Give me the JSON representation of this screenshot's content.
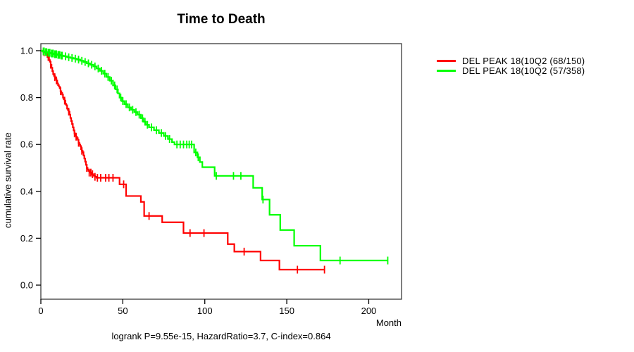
{
  "chart_data": {
    "type": "line",
    "subtype": "kaplan-meier-survival-steps",
    "title": "Time to Death",
    "xlabel": "Month",
    "ylabel": "cumulative survival rate",
    "annotation": "logrank P=9.55e-15, HazardRatio=3.7, C-index=0.864",
    "xlim": [
      0,
      220
    ],
    "ylim": [
      0,
      1
    ],
    "x_ticks": [
      0,
      50,
      100,
      150,
      200
    ],
    "y_ticks": [
      0,
      0.2,
      0.4,
      0.6,
      0.8,
      1.0
    ],
    "grid": false,
    "legend_position": "right-outside",
    "series": [
      {
        "name": "DEL PEAK 18(10Q2 (68/150)",
        "color": "#ff0000",
        "end_time": 173.4,
        "steps": [
          [
            0,
            1.0
          ],
          [
            1.5,
            0.993
          ],
          [
            3,
            0.987
          ],
          [
            4,
            0.973
          ],
          [
            5,
            0.96
          ],
          [
            5.5,
            0.953
          ],
          [
            6,
            0.94
          ],
          [
            6.5,
            0.927
          ],
          [
            7,
            0.913
          ],
          [
            7.5,
            0.9
          ],
          [
            8,
            0.893
          ],
          [
            8.5,
            0.887
          ],
          [
            9,
            0.88
          ],
          [
            9.5,
            0.873
          ],
          [
            10,
            0.86
          ],
          [
            10.5,
            0.853
          ],
          [
            11,
            0.847
          ],
          [
            11.5,
            0.84
          ],
          [
            12,
            0.827
          ],
          [
            12.5,
            0.82
          ],
          [
            13,
            0.813
          ],
          [
            13.5,
            0.8
          ],
          [
            14,
            0.793
          ],
          [
            14.5,
            0.787
          ],
          [
            15,
            0.773
          ],
          [
            15.5,
            0.767
          ],
          [
            16,
            0.753
          ],
          [
            16.5,
            0.747
          ],
          [
            17,
            0.74
          ],
          [
            17.5,
            0.727
          ],
          [
            18,
            0.713
          ],
          [
            18.5,
            0.7
          ],
          [
            19,
            0.687
          ],
          [
            19.5,
            0.673
          ],
          [
            20,
            0.66
          ],
          [
            20.5,
            0.647
          ],
          [
            21,
            0.64
          ],
          [
            21.5,
            0.633
          ],
          [
            22,
            0.627
          ],
          [
            22.5,
            0.62
          ],
          [
            23,
            0.607
          ],
          [
            23.5,
            0.6
          ],
          [
            24,
            0.593
          ],
          [
            24.5,
            0.58
          ],
          [
            25,
            0.573
          ],
          [
            25.5,
            0.567
          ],
          [
            26,
            0.553
          ],
          [
            26.5,
            0.54
          ],
          [
            27,
            0.527
          ],
          [
            27.5,
            0.513
          ],
          [
            28,
            0.5
          ],
          [
            28.5,
            0.493
          ],
          [
            29,
            0.487
          ],
          [
            30,
            0.48
          ],
          [
            31,
            0.473
          ],
          [
            32,
            0.467
          ],
          [
            33,
            0.462
          ],
          [
            34,
            0.458
          ],
          [
            48,
            0.43
          ],
          [
            52,
            0.38
          ],
          [
            61,
            0.355
          ],
          [
            63,
            0.295
          ],
          [
            74,
            0.268
          ],
          [
            87,
            0.222
          ],
          [
            114,
            0.175
          ],
          [
            118,
            0.143
          ],
          [
            134,
            0.105
          ],
          [
            145.5,
            0.066
          ]
        ],
        "censor_marks": [
          [
            2,
            0.993
          ],
          [
            4.5,
            0.973
          ],
          [
            6,
            0.94
          ],
          [
            8.5,
            0.887
          ],
          [
            9.5,
            0.873
          ],
          [
            12,
            0.827
          ],
          [
            14.5,
            0.787
          ],
          [
            17,
            0.74
          ],
          [
            20.5,
            0.647
          ],
          [
            21.5,
            0.633
          ],
          [
            23,
            0.607
          ],
          [
            25,
            0.573
          ],
          [
            28,
            0.5
          ],
          [
            29.5,
            0.48
          ],
          [
            30.5,
            0.48
          ],
          [
            31.5,
            0.473
          ],
          [
            33,
            0.462
          ],
          [
            34.5,
            0.458
          ],
          [
            36.5,
            0.458
          ],
          [
            39.5,
            0.458
          ],
          [
            41.5,
            0.458
          ],
          [
            44,
            0.458
          ],
          [
            50.5,
            0.43
          ],
          [
            66,
            0.295
          ],
          [
            91,
            0.222
          ],
          [
            99.5,
            0.222
          ],
          [
            124,
            0.143
          ],
          [
            156.5,
            0.066
          ],
          [
            173,
            0.066
          ]
        ]
      },
      {
        "name": "DEL PEAK 18(10Q2 (57/358)",
        "color": "#00ff00",
        "end_time": 211.6,
        "steps": [
          [
            0,
            1.0
          ],
          [
            1,
            0.997
          ],
          [
            2.5,
            0.994
          ],
          [
            4,
            0.991
          ],
          [
            6,
            0.988
          ],
          [
            8,
            0.985
          ],
          [
            10,
            0.982
          ],
          [
            12,
            0.979
          ],
          [
            14,
            0.976
          ],
          [
            16,
            0.972
          ],
          [
            18,
            0.969
          ],
          [
            20,
            0.966
          ],
          [
            22,
            0.962
          ],
          [
            24,
            0.957
          ],
          [
            26,
            0.952
          ],
          [
            28,
            0.946
          ],
          [
            30,
            0.94
          ],
          [
            32,
            0.933
          ],
          [
            34,
            0.924
          ],
          [
            36,
            0.914
          ],
          [
            38,
            0.902
          ],
          [
            40,
            0.888
          ],
          [
            42,
            0.872
          ],
          [
            44,
            0.852
          ],
          [
            45.5,
            0.835
          ],
          [
            47,
            0.818
          ],
          [
            48,
            0.8
          ],
          [
            49.5,
            0.785
          ],
          [
            51,
            0.772
          ],
          [
            53,
            0.758
          ],
          [
            55,
            0.748
          ],
          [
            57,
            0.738
          ],
          [
            59,
            0.727
          ],
          [
            61,
            0.712
          ],
          [
            62.5,
            0.697
          ],
          [
            64,
            0.684
          ],
          [
            66,
            0.673
          ],
          [
            69,
            0.661
          ],
          [
            72,
            0.649
          ],
          [
            75,
            0.636
          ],
          [
            77.5,
            0.623
          ],
          [
            80,
            0.61
          ],
          [
            81.5,
            0.6
          ],
          [
            93.5,
            0.566
          ],
          [
            95.5,
            0.545
          ],
          [
            97,
            0.525
          ],
          [
            98.5,
            0.503
          ],
          [
            106,
            0.466
          ],
          [
            129.5,
            0.415
          ],
          [
            135,
            0.365
          ],
          [
            139.5,
            0.3
          ],
          [
            146,
            0.235
          ],
          [
            154.5,
            0.168
          ],
          [
            170.5,
            0.105
          ]
        ],
        "censor_marks": [
          [
            1.5,
            0.997
          ],
          [
            2,
            0.997
          ],
          [
            3,
            0.994
          ],
          [
            3.5,
            0.994
          ],
          [
            4.5,
            0.991
          ],
          [
            5,
            0.991
          ],
          [
            5.5,
            0.991
          ],
          [
            6.5,
            0.988
          ],
          [
            7,
            0.988
          ],
          [
            7.5,
            0.988
          ],
          [
            8.5,
            0.985
          ],
          [
            9,
            0.985
          ],
          [
            9.5,
            0.985
          ],
          [
            10.5,
            0.982
          ],
          [
            11,
            0.982
          ],
          [
            11.5,
            0.982
          ],
          [
            12.5,
            0.979
          ],
          [
            13,
            0.979
          ],
          [
            15,
            0.976
          ],
          [
            17,
            0.972
          ],
          [
            19,
            0.969
          ],
          [
            21,
            0.966
          ],
          [
            23,
            0.962
          ],
          [
            25,
            0.957
          ],
          [
            27,
            0.952
          ],
          [
            29,
            0.946
          ],
          [
            31,
            0.94
          ],
          [
            33,
            0.933
          ],
          [
            35,
            0.924
          ],
          [
            37,
            0.914
          ],
          [
            39,
            0.902
          ],
          [
            41,
            0.888
          ],
          [
            43,
            0.872
          ],
          [
            45,
            0.852
          ],
          [
            46.5,
            0.835
          ],
          [
            48.7,
            0.8
          ],
          [
            50,
            0.785
          ],
          [
            52,
            0.772
          ],
          [
            54,
            0.758
          ],
          [
            56,
            0.748
          ],
          [
            58,
            0.738
          ],
          [
            60,
            0.727
          ],
          [
            62,
            0.712
          ],
          [
            63.5,
            0.697
          ],
          [
            65,
            0.684
          ],
          [
            67.5,
            0.673
          ],
          [
            70.5,
            0.661
          ],
          [
            73.5,
            0.649
          ],
          [
            76,
            0.636
          ],
          [
            78.5,
            0.623
          ],
          [
            83,
            0.6
          ],
          [
            85,
            0.6
          ],
          [
            87,
            0.6
          ],
          [
            89,
            0.6
          ],
          [
            90.5,
            0.6
          ],
          [
            92,
            0.6
          ],
          [
            94.5,
            0.566
          ],
          [
            96,
            0.545
          ],
          [
            107,
            0.466
          ],
          [
            117.5,
            0.466
          ],
          [
            122,
            0.466
          ],
          [
            135.5,
            0.365
          ],
          [
            182.5,
            0.105
          ],
          [
            211.6,
            0.105
          ]
        ]
      }
    ]
  }
}
